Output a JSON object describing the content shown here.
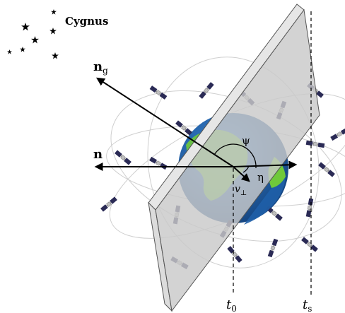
{
  "constellation": {
    "name": "Cygnus"
  },
  "vectors": {
    "n": "n",
    "n_g": {
      "main": "n",
      "sub": "g"
    },
    "v_perp": {
      "main": "v",
      "sub": "⊥"
    }
  },
  "angles": {
    "psi": "ψ",
    "eta": "η"
  },
  "times": {
    "t0": {
      "main": "t",
      "sub": "0"
    },
    "ts": {
      "main": "t",
      "sub": "s"
    }
  },
  "colors": {
    "plane_front": "#c9c9c9",
    "plane_edge": "#e6e6e6",
    "ocean": "#1f5fa8",
    "land": "#6fc93a",
    "orbit": "#cfcfcf"
  },
  "icons": [
    "star-icon",
    "satellite-icon",
    "earth-globe"
  ]
}
